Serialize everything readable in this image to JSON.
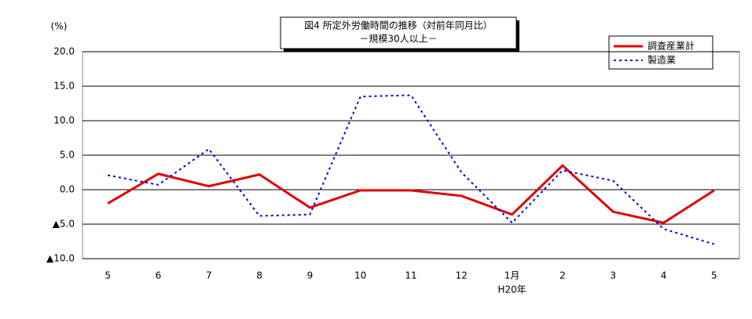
{
  "chart_data": {
    "type": "line",
    "title": "図4  所定外労働時間の推移（対前年同月比）",
    "subtitle": "－規模30人以上－",
    "y_label": "(%)",
    "annotation": "H20年",
    "categories": [
      "5",
      "6",
      "7",
      "8",
      "9",
      "10",
      "11",
      "12",
      "1月",
      "2",
      "3",
      "4",
      "5"
    ],
    "series": [
      {
        "name": "調査産業計",
        "color": "#e00000",
        "dash": false,
        "values": [
          -2.0,
          2.3,
          0.5,
          2.2,
          -2.6,
          -0.1,
          -0.1,
          -0.9,
          -3.6,
          3.5,
          -3.2,
          -4.8,
          -0.1
        ]
      },
      {
        "name": "製造業",
        "color": "#0000e0",
        "dash": true,
        "values": [
          2.1,
          0.7,
          5.9,
          -3.8,
          -3.6,
          13.5,
          13.7,
          2.5,
          -4.8,
          2.8,
          1.3,
          -5.7,
          -7.9
        ]
      }
    ],
    "ylim": [
      -10,
      20
    ],
    "yticks": [
      {
        "value": -10,
        "label": "▲10.0"
      },
      {
        "value": -5,
        "label": "▲5.0"
      },
      {
        "value": 0,
        "label": "0.0"
      },
      {
        "value": 5,
        "label": "5.0"
      },
      {
        "value": 10,
        "label": "10.0"
      },
      {
        "value": 15,
        "label": "15.0"
      },
      {
        "value": 20,
        "label": "20.0"
      }
    ],
    "grid": true,
    "legend": "top-right"
  }
}
